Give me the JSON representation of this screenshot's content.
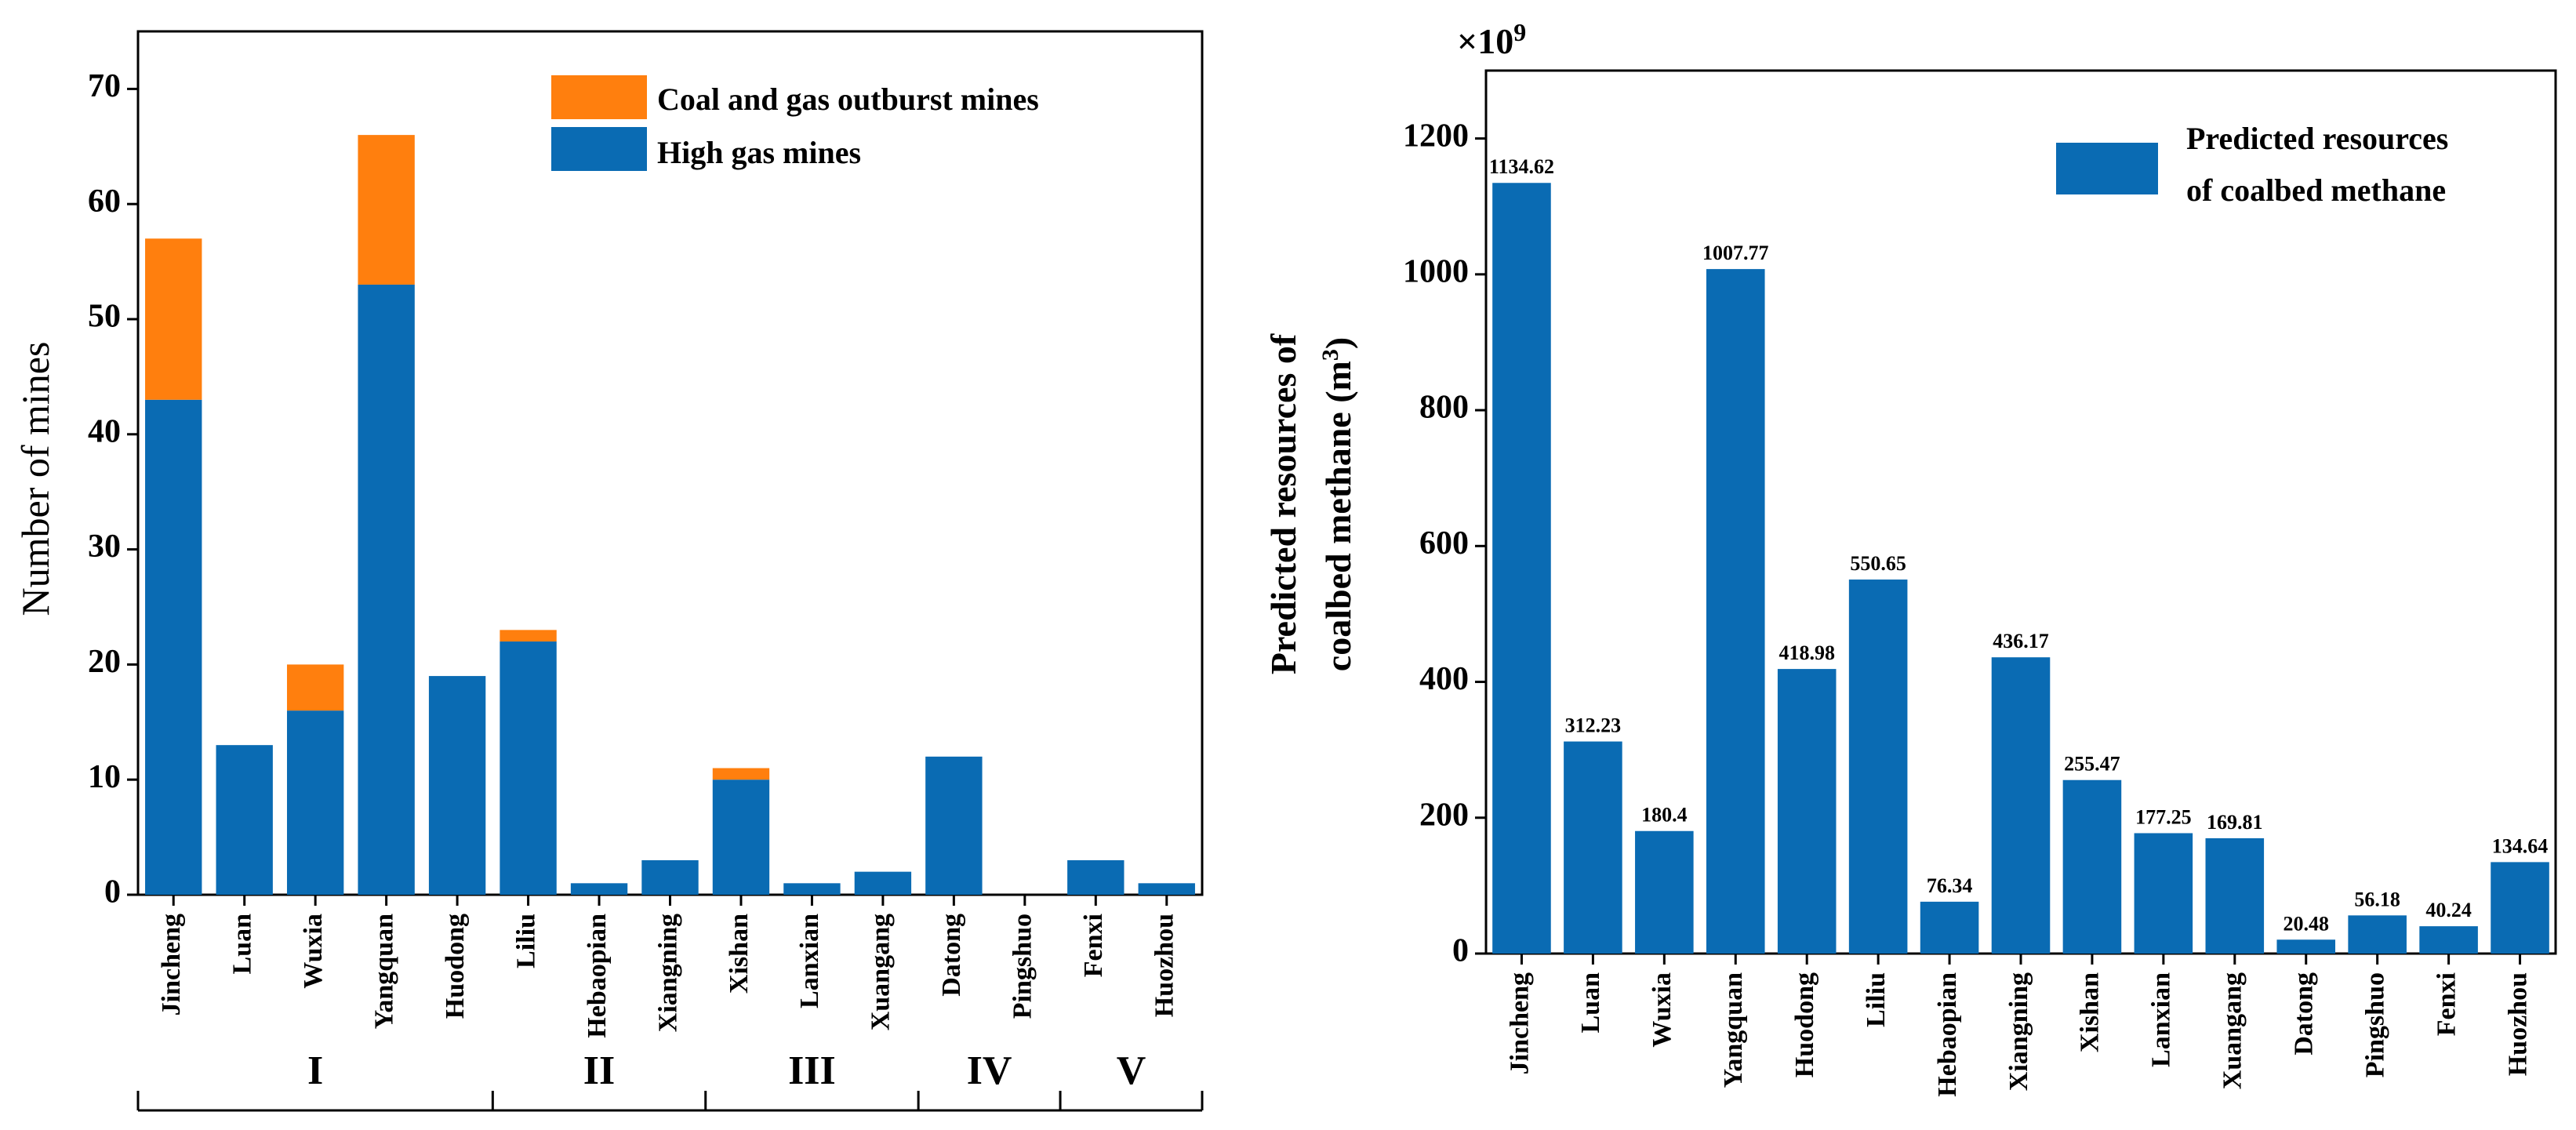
{
  "colors": {
    "high_gas": "#0a6bb3",
    "outburst": "#ff7f0e",
    "axis": "#000000"
  },
  "chart_data": [
    {
      "type": "bar",
      "stacked": true,
      "title": "",
      "ylabel": "Number of mines",
      "xlabel": "",
      "ylim": [
        0,
        75
      ],
      "yticks": [
        0,
        10,
        20,
        30,
        40,
        50,
        60,
        70
      ],
      "ytick_labels": [
        "0",
        "10",
        "20",
        "30",
        "40",
        "50",
        "60",
        "70"
      ],
      "categories": [
        "Jincheng",
        "Luan",
        "Wuxia",
        "Yangquan",
        "Huodong",
        "Liliu",
        "Hebaopian",
        "Xiangning",
        "Xishan",
        "Lanxian",
        "Xuangang",
        "Datong",
        "Pingshuo",
        "Fenxi",
        "Huozhou"
      ],
      "series": [
        {
          "name": "High gas mines",
          "values": [
            43,
            13,
            16,
            53,
            19,
            22,
            1,
            3,
            10,
            1,
            2,
            12,
            0,
            3,
            1
          ]
        },
        {
          "name": "Coal and gas outburst mines",
          "values": [
            14,
            0,
            4,
            13,
            0,
            1,
            0,
            0,
            1,
            0,
            0,
            0,
            0,
            0,
            0
          ]
        }
      ],
      "legend": [
        "Coal and gas outburst mines",
        "High gas mines"
      ],
      "legend_position": "top-right",
      "groups": [
        {
          "label": "I",
          "members": [
            "Jincheng",
            "Luan",
            "Wuxia",
            "Yangquan",
            "Huodong"
          ]
        },
        {
          "label": "II",
          "members": [
            "Liliu",
            "Hebaopian",
            "Xiangning"
          ]
        },
        {
          "label": "III",
          "members": [
            "Xishan",
            "Lanxian",
            "Xuangang"
          ]
        },
        {
          "label": "IV",
          "members": [
            "Datong",
            "Pingshuo"
          ]
        },
        {
          "label": "V",
          "members": [
            "Fenxi",
            "Huozhou"
          ]
        }
      ]
    },
    {
      "type": "bar",
      "title": "",
      "ylabel_line1": "Predicted resources of",
      "ylabel_line2": "coalbed methane (m",
      "ylabel_sup": "3",
      "ylabel_close": ")",
      "multiplier": "×10",
      "multiplier_exp": "9",
      "ylim": [
        0,
        1300
      ],
      "yticks": [
        0,
        200,
        400,
        600,
        800,
        1000,
        1200
      ],
      "ytick_labels": [
        "0",
        "200",
        "400",
        "600",
        "800",
        "1000",
        "1200"
      ],
      "categories": [
        "Jincheng",
        "Luan",
        "Wuxia",
        "Yangquan",
        "Huodong",
        "Liliu",
        "Hebaopian",
        "Xiangning",
        "Xishan",
        "Lanxian",
        "Xuangang",
        "Datong",
        "Pingshuo",
        "Fenxi",
        "Huozhou"
      ],
      "values": [
        1134.62,
        312.23,
        180.4,
        1007.77,
        418.98,
        550.65,
        76.34,
        436.17,
        255.47,
        177.25,
        169.81,
        20.48,
        56.18,
        40.24,
        134.64
      ],
      "data_labels": [
        "1134.62",
        "312.23",
        "180.4",
        "1007.77",
        "418.98",
        "550.65",
        "76.34",
        "436.17",
        "255.47",
        "177.25",
        "169.81",
        "20.48",
        "56.18",
        "40.24",
        "134.64"
      ],
      "legend": [
        "Predicted resources",
        "of coalbed methane"
      ],
      "legend_position": "top-right"
    }
  ]
}
